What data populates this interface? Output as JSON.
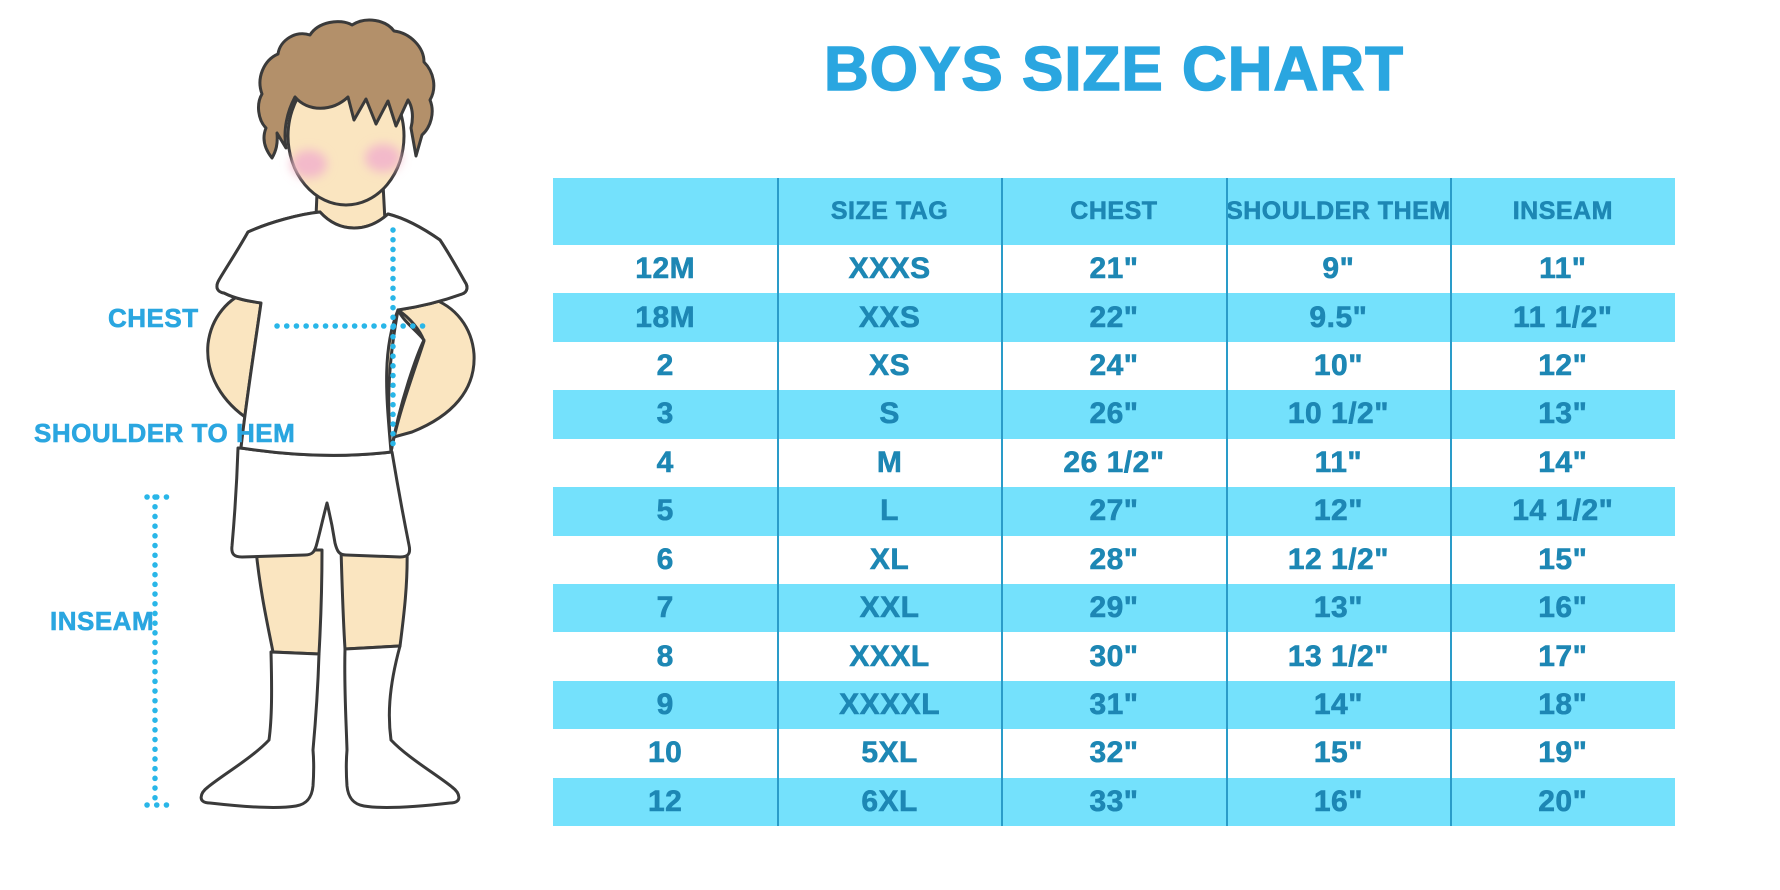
{
  "title": "BOYS SIZE CHART",
  "colors": {
    "accent_blue": "#2aa6e0",
    "table_text_teal": "#1d87b4",
    "band_cyan": "#74e1fc",
    "separator_blue": "#2a9cc9",
    "dotted_line_cyan": "#29b6e8",
    "skin": "#fae5c0",
    "hair_brown": "#b3906a",
    "cheek_pink": "#f3b9ca",
    "outline": "#3a3a3a"
  },
  "figure": {
    "illustration": "boy-measurement-figure",
    "chest_label": "CHEST",
    "shoulder_label": "SHOULDER TO HEM",
    "inseam_label": "INSEAM"
  },
  "table": {
    "columns": [
      "",
      "SIZE TAG",
      "CHEST",
      "SHOULDER THEM",
      "INSEAM"
    ],
    "rows": [
      [
        "12M",
        "XXXS",
        "21\"",
        "9\"",
        "11\""
      ],
      [
        "18M",
        "XXS",
        "22\"",
        "9.5\"",
        "11 1/2\""
      ],
      [
        "2",
        "XS",
        "24\"",
        "10\"",
        "12\""
      ],
      [
        "3",
        "S",
        "26\"",
        "10 1/2\"",
        "13\""
      ],
      [
        "4",
        "M",
        "26 1/2\"",
        "11\"",
        "14\""
      ],
      [
        "5",
        "L",
        "27\"",
        "12\"",
        "14 1/2\""
      ],
      [
        "6",
        "XL",
        "28\"",
        "12 1/2\"",
        "15\""
      ],
      [
        "7",
        "XXL",
        "29\"",
        "13\"",
        "16\""
      ],
      [
        "8",
        "XXXL",
        "30\"",
        "13 1/2\"",
        "17\""
      ],
      [
        "9",
        "XXXXL",
        "31\"",
        "14\"",
        "18\""
      ],
      [
        "10",
        "5XL",
        "32\"",
        "15\"",
        "19\""
      ],
      [
        "12",
        "6XL",
        "33\"",
        "16\"",
        "20\""
      ]
    ]
  }
}
